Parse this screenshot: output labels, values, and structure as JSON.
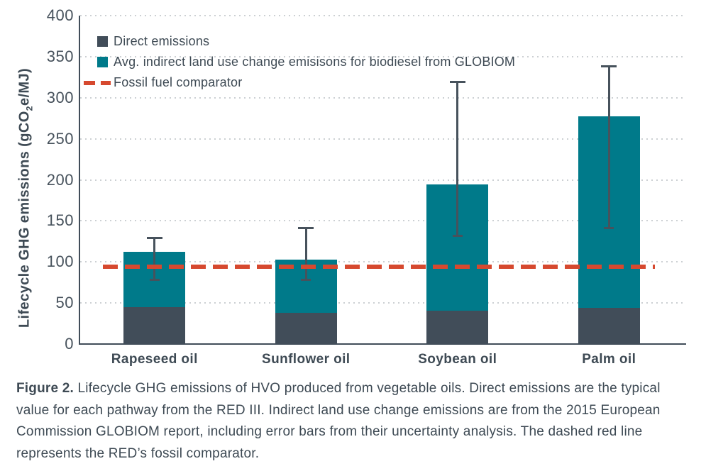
{
  "figure": {
    "caption_label": "Figure 2.",
    "caption_text": " Lifecycle GHG emissions of HVO produced from vegetable oils. Direct emissions are the typical value for each pathway from the RED III. Indirect land use change emissions are from the 2015 European Commission GLOBIOM report, including error bars from their uncertainty analysis. The dashed red line represents the RED’s fossil comparator."
  },
  "ylabel_parts": {
    "pre": "Lifecycle GHG emissions (gCO",
    "sub": "2",
    "post": "e/MJ)"
  },
  "colors": {
    "direct": "#414d59",
    "iluc": "#007a8a",
    "fossil_line": "#d6492f",
    "error_bar": "#47525c",
    "text": "#3e4a54",
    "gridline": "#ccd0d3"
  },
  "chart_data": {
    "type": "bar",
    "stacked": true,
    "categories": [
      "Rapeseed oil",
      "Sunflower oil",
      "Soybean oil",
      "Palm oil"
    ],
    "series": [
      {
        "name": "Direct emissions",
        "color": "#414d59",
        "values": [
          45,
          38,
          41,
          44
        ]
      },
      {
        "name": "Avg. indirect land use change emisisons for biodiesel from GLOBIOM",
        "color": "#007a8a",
        "values": [
          67,
          65,
          153,
          233
        ]
      }
    ],
    "totals": [
      112,
      103,
      194,
      277
    ],
    "error_bars": {
      "low": [
        78,
        78,
        131,
        141
      ],
      "high": [
        130,
        142,
        320,
        339
      ]
    },
    "reference_line": {
      "label": "Fossil fuel comparator",
      "value": 94,
      "color": "#d6492f",
      "style": "dashed"
    },
    "title": "",
    "xlabel": "",
    "ylabel": "Lifecycle GHG emissions (gCO2e/MJ)",
    "ylim": [
      0,
      400
    ],
    "yticks": [
      0,
      50,
      100,
      150,
      200,
      250,
      300,
      350,
      400
    ],
    "grid": "dotted-horizontal",
    "legend_position": "top-left"
  }
}
